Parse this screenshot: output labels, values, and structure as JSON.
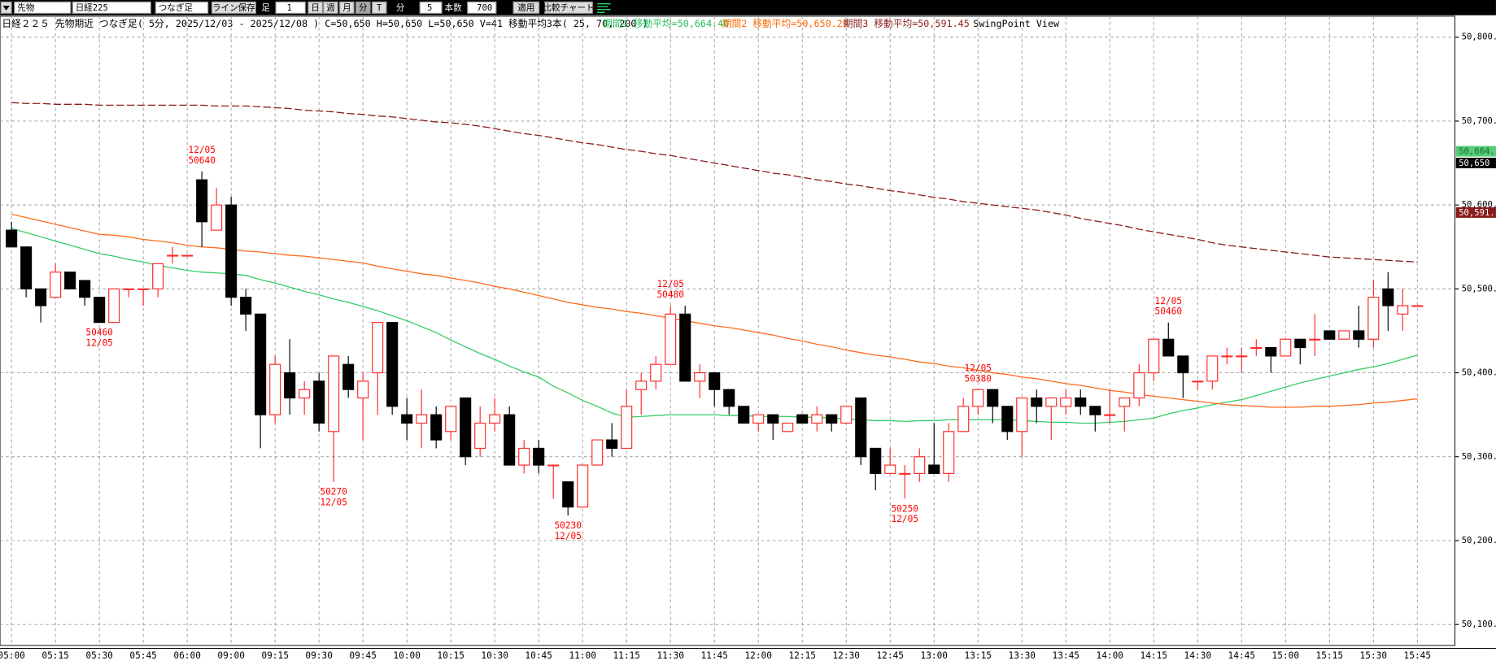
{
  "toolbar": {
    "instrument": "先物",
    "symbol": "日経225",
    "chart_kind": "つなぎ足",
    "save_line": "ライン保存",
    "bar_label": "足",
    "bar_value": "1",
    "periods": [
      "日",
      "週",
      "月",
      "分",
      "T"
    ],
    "unit": "分",
    "interval": "5",
    "count_label": "本数",
    "count": "700",
    "apply": "適用",
    "compare": "比較チャート"
  },
  "header": {
    "title": "日経２２５ 先物期近 つなぎ足( 5分, 2025/12/03 - 2025/12/08 )  C=50,650 H=50,650 L=50,650 V=41   移動平均3本( 25, 70, 200 )",
    "ma_labels": [
      {
        "text": "期間1 移動平均=50,664.40",
        "color": "#22bb55"
      },
      {
        "text": "期間2 移動平均=50,650.29",
        "color": "#ff6600"
      },
      {
        "text": "期間3 移動平均=50,591.45",
        "color": "#8b1a1a"
      }
    ],
    "view": "SwingPoint View"
  },
  "chart_data": {
    "type": "candlestick",
    "categories": [
      "05:00",
      null,
      null,
      "05:15",
      null,
      null,
      "05:30",
      null,
      null,
      "05:45",
      null,
      null,
      "06:00",
      null,
      null,
      "09:00",
      null,
      null,
      "09:15",
      null,
      null,
      "09:30",
      null,
      null,
      "09:45",
      null,
      null,
      "10:00",
      null,
      null,
      "10:15",
      null,
      null,
      "10:30",
      null,
      null,
      "10:45",
      null,
      null,
      "11:00",
      null,
      null,
      "11:15",
      null,
      null,
      "11:30",
      null,
      null,
      "11:45",
      null,
      null,
      "12:00",
      null,
      null,
      "12:15",
      null,
      null,
      "12:30",
      null,
      null,
      "12:45",
      null,
      null,
      "13:00",
      null,
      null,
      "13:15",
      null,
      null,
      "13:30",
      null,
      null,
      "13:45",
      null,
      null,
      "14:00",
      null,
      null,
      "14:15",
      null,
      null,
      "14:30",
      null,
      null,
      "14:45",
      null,
      null,
      "15:00",
      null,
      null,
      "15:15",
      null,
      null,
      "15:30",
      null,
      null,
      "15:45"
    ],
    "open": [
      50570,
      50550,
      50500,
      50490,
      50520,
      50510,
      50490,
      50460,
      50500,
      50500,
      50500,
      50540,
      50540,
      50630,
      50570,
      50600,
      50490,
      50470,
      50350,
      50400,
      50370,
      50390,
      50330,
      50410,
      50370,
      50400,
      50460,
      50350,
      50340,
      50350,
      50330,
      50370,
      50310,
      50340,
      50350,
      50290,
      50310,
      50290,
      50270,
      50240,
      50290,
      50320,
      50310,
      50380,
      50390,
      50410,
      50470,
      50390,
      50400,
      50380,
      50360,
      50340,
      50350,
      50330,
      50350,
      50340,
      50350,
      50340,
      50370,
      50310,
      50280,
      50280,
      50280,
      50290,
      50280,
      50330,
      50360,
      50380,
      50360,
      50330,
      50370,
      50360,
      50360,
      50370,
      50360,
      50350,
      50360,
      50370,
      50400,
      50440,
      50420,
      50390,
      50390,
      50420,
      50420,
      50430,
      50430,
      50420,
      50440,
      50440,
      50450,
      50440,
      50450,
      50440,
      50500,
      50470,
      50480
    ],
    "high": [
      50580,
      50550,
      50500,
      50530,
      50520,
      50510,
      50490,
      50500,
      50500,
      50500,
      50530,
      50550,
      50540,
      50640,
      50620,
      50610,
      50500,
      50470,
      50420,
      50440,
      50390,
      50400,
      50420,
      50420,
      50400,
      50460,
      50460,
      50370,
      50380,
      50360,
      50360,
      50370,
      50360,
      50370,
      50360,
      50320,
      50320,
      50290,
      50270,
      50290,
      50320,
      50340,
      50380,
      50400,
      50420,
      50480,
      50480,
      50410,
      50400,
      50380,
      50360,
      50350,
      50350,
      50340,
      50350,
      50360,
      50350,
      50360,
      50370,
      50310,
      50310,
      50290,
      50310,
      50340,
      50340,
      50370,
      50380,
      50380,
      50360,
      50370,
      50380,
      50370,
      50380,
      50380,
      50360,
      50380,
      50370,
      50410,
      50440,
      50460,
      50420,
      50390,
      50420,
      50430,
      50430,
      50440,
      50430,
      50440,
      50440,
      50470,
      50450,
      50450,
      50480,
      50510,
      50520,
      50500,
      50480
    ],
    "low": [
      50550,
      50490,
      50460,
      50490,
      50500,
      50480,
      50460,
      50460,
      50490,
      50480,
      50490,
      50530,
      50540,
      50550,
      50570,
      50480,
      50450,
      50310,
      50340,
      50350,
      50350,
      50330,
      50270,
      50370,
      50320,
      50350,
      50350,
      50320,
      50310,
      50310,
      50320,
      50290,
      50300,
      50330,
      50290,
      50280,
      50280,
      50250,
      50230,
      50240,
      50290,
      50300,
      50310,
      50350,
      50380,
      50410,
      50390,
      50370,
      50360,
      50350,
      50340,
      50330,
      50320,
      50330,
      50340,
      50330,
      50330,
      50340,
      50290,
      50260,
      50280,
      50250,
      50270,
      50280,
      50270,
      50330,
      50350,
      50340,
      50320,
      50300,
      50340,
      50320,
      50350,
      50350,
      50330,
      50340,
      50330,
      50360,
      50390,
      50420,
      50370,
      50380,
      50380,
      50410,
      50400,
      50420,
      50400,
      50420,
      50410,
      50420,
      50440,
      50440,
      50430,
      50430,
      50450,
      50450,
      50480
    ],
    "close": [
      50550,
      50500,
      50480,
      50520,
      50500,
      50490,
      50460,
      50500,
      50500,
      50500,
      50530,
      50540,
      50540,
      50580,
      50600,
      50490,
      50470,
      50350,
      50410,
      50370,
      50380,
      50340,
      50420,
      50380,
      50390,
      50460,
      50360,
      50340,
      50350,
      50320,
      50360,
      50300,
      50340,
      50350,
      50290,
      50310,
      50290,
      50290,
      50240,
      50290,
      50320,
      50310,
      50360,
      50390,
      50410,
      50470,
      50390,
      50400,
      50380,
      50360,
      50340,
      50350,
      50340,
      50340,
      50340,
      50350,
      50340,
      50360,
      50300,
      50280,
      50290,
      50280,
      50300,
      50280,
      50330,
      50360,
      50380,
      50360,
      50330,
      50370,
      50360,
      50370,
      50370,
      50360,
      50350,
      50350,
      50370,
      50400,
      50440,
      50420,
      50400,
      50390,
      50420,
      50420,
      50420,
      50430,
      50420,
      50440,
      50430,
      50440,
      50440,
      50450,
      50440,
      50490,
      50480,
      50480,
      50480
    ],
    "up_color": "#ff2a2a",
    "down_color": "#000000",
    "series": [
      {
        "name": "期間1",
        "color": "#33cc66",
        "dash": false,
        "values": [
          50572,
          50567,
          50562,
          50557,
          50552,
          50547,
          50542,
          50539,
          50535,
          50532,
          50528,
          50525,
          50522,
          50520,
          50519,
          50518,
          50516,
          50511,
          50507,
          50502,
          50497,
          50493,
          50488,
          50484,
          50479,
          50474,
          50468,
          50462,
          50455,
          50448,
          50439,
          50431,
          50423,
          50416,
          50408,
          50401,
          50395,
          50384,
          50376,
          50367,
          50360,
          50352,
          50347,
          50348,
          50349,
          50350,
          50350,
          50350,
          50350,
          50349,
          50349,
          50348,
          50348,
          50348,
          50347,
          50347,
          50346,
          50345,
          50344,
          50343,
          50343,
          50342,
          50343,
          50343,
          50344,
          50344,
          50344,
          50344,
          50344,
          50343,
          50342,
          50341,
          50341,
          50340,
          50340,
          50341,
          50342,
          50344,
          50346,
          50351,
          50355,
          50358,
          50362,
          50365,
          50368,
          50373,
          50378,
          50383,
          50388,
          50392,
          50396,
          50400,
          50404,
          50407,
          50411,
          50416,
          50421
        ]
      },
      {
        "name": "期間2",
        "color": "#ff6a1a",
        "dash": false,
        "values": [
          50589,
          50585,
          50581,
          50577,
          50573,
          50569,
          50565,
          50564,
          50562,
          50559,
          50557,
          50555,
          50552,
          50550,
          50549,
          50547,
          50545,
          50544,
          50542,
          50540,
          50539,
          50537,
          50535,
          50533,
          50531,
          50527,
          50524,
          50521,
          50518,
          50516,
          50513,
          50510,
          50507,
          50503,
          50500,
          50496,
          50492,
          50488,
          50484,
          50481,
          50478,
          50476,
          50473,
          50471,
          50468,
          50465,
          50462,
          50459,
          50456,
          50454,
          50451,
          50448,
          50445,
          50441,
          50438,
          50434,
          50431,
          50427,
          50424,
          50421,
          50419,
          50416,
          50413,
          50411,
          50408,
          50406,
          50403,
          50400,
          50398,
          50395,
          50393,
          50390,
          50387,
          50385,
          50382,
          50379,
          50377,
          50374,
          50372,
          50370,
          50368,
          50366,
          50364,
          50362,
          50361,
          50360,
          50359,
          50359,
          50359,
          50360,
          50360,
          50361,
          50362,
          50364,
          50365,
          50367,
          50369
        ]
      },
      {
        "name": "期間3",
        "color": "#8b1a1a",
        "dash": true,
        "values": [
          50722,
          50721,
          50721,
          50720,
          50720,
          50720,
          50719,
          50719,
          50719,
          50719,
          50719,
          50719,
          50719,
          50719,
          50718,
          50718,
          50718,
          50717,
          50716,
          50715,
          50713,
          50712,
          50711,
          50709,
          50708,
          50706,
          50705,
          50703,
          50701,
          50699,
          50698,
          50696,
          50694,
          50691,
          50688,
          50685,
          50683,
          50680,
          50677,
          50674,
          50672,
          50669,
          50666,
          50664,
          50661,
          50659,
          50656,
          50653,
          50650,
          50647,
          50644,
          50641,
          50638,
          50636,
          50633,
          50630,
          50628,
          50625,
          50623,
          50620,
          50617,
          50615,
          50612,
          50609,
          50607,
          50604,
          50602,
          50600,
          50598,
          50596,
          50594,
          50591,
          50588,
          50584,
          50581,
          50578,
          50575,
          50571,
          50568,
          50565,
          50562,
          50559,
          50555,
          50552,
          50550,
          50548,
          50546,
          50544,
          50542,
          50540,
          50538,
          50537,
          50536,
          50535,
          50534,
          50533,
          50532
        ]
      }
    ],
    "annotations": [
      {
        "x": 13,
        "date": "12/05",
        "price": 50640,
        "position": "above"
      },
      {
        "x": 6,
        "date": "12/05",
        "price": 50460,
        "position": "below"
      },
      {
        "x": 22,
        "date": "12/05",
        "price": 50270,
        "position": "below"
      },
      {
        "x": 38,
        "date": "12/05",
        "price": 50230,
        "position": "below"
      },
      {
        "x": 45,
        "date": "12/05",
        "price": 50480,
        "position": "above"
      },
      {
        "x": 61,
        "date": "12/05",
        "price": 50250,
        "position": "below"
      },
      {
        "x": 66,
        "date": "12/05",
        "price": 50380,
        "position": "above"
      },
      {
        "x": 79,
        "date": "12/05",
        "price": 50460,
        "position": "above"
      }
    ],
    "annotation_color": "#ff0000",
    "price_tags": [
      {
        "value": 50664,
        "label": "50,664.",
        "color": "#55cc77",
        "text_color": "#1a6a33"
      },
      {
        "value": 50650,
        "label": "50,650",
        "color": "#000000",
        "text_color": "#ffffff"
      },
      {
        "value": 50591,
        "label": "50,591.",
        "color": "#8b1a1a",
        "text_color": "#ffffff"
      }
    ],
    "ylim": [
      50075,
      50825
    ],
    "yticks": [
      {
        "value": 50100,
        "label": "50,100."
      },
      {
        "value": 50200,
        "label": "50,200."
      },
      {
        "value": 50300,
        "label": "50,300."
      },
      {
        "value": 50400,
        "label": "50,400."
      },
      {
        "value": 50500,
        "label": "50,500."
      },
      {
        "value": 50600,
        "label": "50,600."
      },
      {
        "value": 50700,
        "label": "50,700."
      },
      {
        "value": 50800,
        "label": "50,800."
      }
    ],
    "grid": true
  }
}
